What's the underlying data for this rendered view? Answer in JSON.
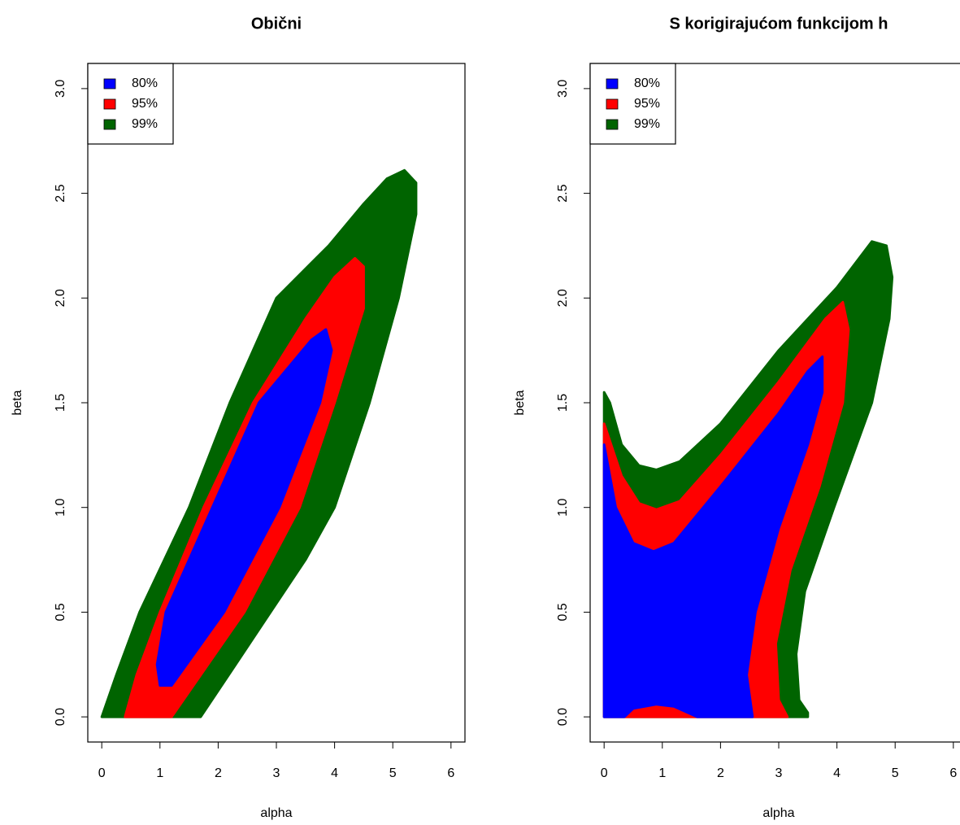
{
  "chart_data": [
    {
      "type": "area",
      "title": "Obični",
      "xlabel": "alpha",
      "ylabel": "beta",
      "xlim": [
        -0.24,
        6.24
      ],
      "ylim": [
        -0.12,
        3.12
      ],
      "xticks": [
        0,
        1,
        2,
        3,
        4,
        5,
        6
      ],
      "yticks": [
        {
          "value": 0,
          "label": "0.0"
        },
        0.5,
        {
          "value": 1,
          "label": "1.0"
        },
        1.5,
        {
          "value": 2,
          "label": "2.0"
        },
        2.5,
        {
          "value": 3,
          "label": "3.0"
        }
      ],
      "legend": "top-left",
      "series": [
        {
          "name": "80%",
          "color": "#0000ff",
          "x": [
            1.0,
            1.2,
            2.1,
            3.05,
            3.75,
            3.95,
            3.85,
            3.6,
            2.7,
            1.9,
            1.1,
            0.95
          ],
          "values": [
            0.15,
            0.15,
            0.5,
            1.0,
            1.5,
            1.75,
            1.85,
            1.8,
            1.5,
            1.0,
            0.5,
            0.25
          ]
        },
        {
          "name": "95%",
          "color": "#ff0000",
          "x": [
            0.4,
            1.2,
            1.7,
            2.45,
            3.4,
            4.0,
            4.5,
            4.5,
            4.35,
            4.0,
            3.5,
            2.6,
            1.75,
            1.0,
            0.6
          ],
          "values": [
            0,
            0,
            0.2,
            0.5,
            1.0,
            1.5,
            1.95,
            2.15,
            2.19,
            2.1,
            1.9,
            1.5,
            1.0,
            0.5,
            0.2
          ]
        },
        {
          "name": "99%",
          "color": "#006400",
          "x": [
            0,
            1.7,
            2.3,
            2.9,
            3.5,
            4.0,
            4.6,
            5.1,
            5.4,
            5.4,
            5.2,
            4.9,
            4.5,
            3.9,
            3.0,
            2.2,
            1.5,
            0.65,
            0.25
          ],
          "values": [
            0,
            0,
            0.25,
            0.5,
            0.75,
            1.0,
            1.5,
            2.0,
            2.4,
            2.55,
            2.61,
            2.57,
            2.45,
            2.25,
            2.0,
            1.5,
            1.0,
            0.5,
            0.2
          ]
        }
      ]
    },
    {
      "type": "area",
      "title": "S korigirajućom funkcijom h",
      "xlabel": "alpha",
      "ylabel": "beta",
      "xlim": [
        -0.24,
        6.24
      ],
      "ylim": [
        -0.12,
        3.12
      ],
      "xticks": [
        0,
        1,
        2,
        3,
        4,
        5,
        6
      ],
      "yticks": [
        {
          "value": 0,
          "label": "0.0"
        },
        0.5,
        {
          "value": 1,
          "label": "1.0"
        },
        1.5,
        {
          "value": 2,
          "label": "2.0"
        },
        2.5,
        {
          "value": 3,
          "label": "3.0"
        }
      ],
      "legend": "top-left",
      "series": [
        {
          "name": "80%",
          "color": "#0000ff",
          "x": [
            0,
            0.2,
            0.5,
            0.85,
            1.2,
            2.0,
            3.0,
            3.5,
            3.75,
            3.75,
            3.5,
            3.0,
            2.6,
            2.45,
            2.55,
            1.6,
            1.2,
            0.9,
            0.5,
            0.35,
            0
          ],
          "values": [
            1.3,
            1.0,
            0.83,
            0.79,
            0.83,
            1.1,
            1.45,
            1.65,
            1.72,
            1.55,
            1.3,
            0.9,
            0.5,
            0.2,
            0,
            0,
            0.05,
            0.06,
            0.04,
            0,
            0
          ]
        },
        {
          "name": "95%",
          "color": "#ff0000",
          "x": [
            0,
            0.3,
            0.6,
            0.9,
            1.3,
            2.0,
            3.0,
            3.8,
            4.1,
            4.2,
            4.1,
            3.7,
            3.2,
            2.95,
            3.0,
            3.15,
            0
          ],
          "values": [
            1.4,
            1.15,
            1.02,
            0.99,
            1.03,
            1.25,
            1.6,
            1.9,
            1.98,
            1.85,
            1.5,
            1.1,
            0.7,
            0.35,
            0.08,
            0,
            0
          ]
        },
        {
          "name": "99%",
          "color": "#006400",
          "x": [
            0,
            0.1,
            0.3,
            0.6,
            0.9,
            1.3,
            2.0,
            3.0,
            4.0,
            4.6,
            4.85,
            4.95,
            4.9,
            4.6,
            3.95,
            3.45,
            3.3,
            3.35,
            3.5,
            3.5,
            0
          ],
          "values": [
            1.55,
            1.5,
            1.3,
            1.2,
            1.18,
            1.22,
            1.4,
            1.75,
            2.05,
            2.27,
            2.25,
            2.1,
            1.9,
            1.5,
            1.0,
            0.6,
            0.3,
            0.08,
            0.02,
            0,
            0
          ]
        }
      ]
    }
  ]
}
